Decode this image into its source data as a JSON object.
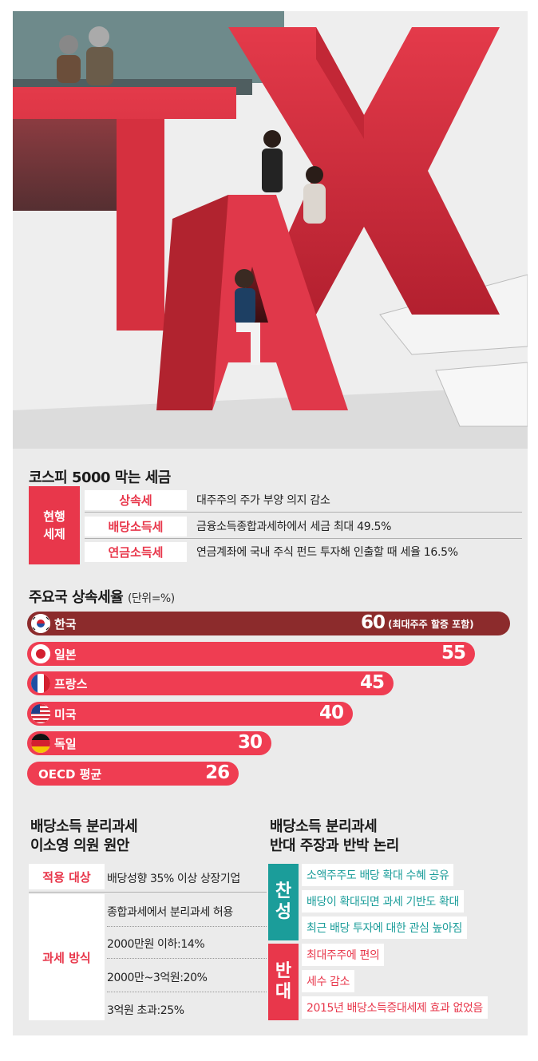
{
  "section1": {
    "title": "코스피 5000 막는 세금",
    "group_label": "현행 세제",
    "rows": [
      {
        "name": "상속세",
        "desc": "대주주의 주가 부양 의지 감소"
      },
      {
        "name": "배당소득세",
        "desc": "금융소득종합과세하에서 세금 최대 49.5%"
      },
      {
        "name": "연금소득세",
        "desc": "연금계좌에 국내 주식 펀드 투자해 인출할 때 세율 16.5%"
      }
    ]
  },
  "chart_data": {
    "type": "bar",
    "title": "주요국 상속세율",
    "unit": "(단위=%)",
    "categories": [
      "한국",
      "일본",
      "프랑스",
      "미국",
      "독일",
      "OECD 평균"
    ],
    "values": [
      60,
      55,
      45,
      40,
      30,
      26
    ],
    "annotations": [
      {
        "category": "한국",
        "text": "(최대주주 할증 포함)"
      }
    ],
    "colors": {
      "highlight": "#8c2b2c",
      "bar": "#ef3d52"
    }
  },
  "section3": {
    "title_line1": "배당소득 분리과세",
    "title_line2": "이소영 의원 원안",
    "label_target": "적용 대상",
    "target": "배당성향 35% 이상 상장기업",
    "label_method": "과세 방식",
    "methods": [
      "종합과세에서 분리과세 허용",
      "2000만원 이하:14%",
      "2000만~3억원:20%",
      "3억원 초과:25%"
    ]
  },
  "section4": {
    "title_line1": "배당소득 분리과세",
    "title_line2": "반대 주장과 반박 논리",
    "pro_label": "찬성",
    "pro_items": [
      "소액주주도 배당 확대 수혜 공유",
      "배당이 확대되면 과세 기반도 확대",
      "최근 배당 투자에 대한 관심 높아짐"
    ],
    "con_label": "반대",
    "con_items": [
      "최대주주에 편의",
      "세수 감소",
      "2015년 배당소득증대세제 효과 없었음"
    ],
    "colors": {
      "pro": "#1b9d9a",
      "con": "#e8374b"
    }
  }
}
